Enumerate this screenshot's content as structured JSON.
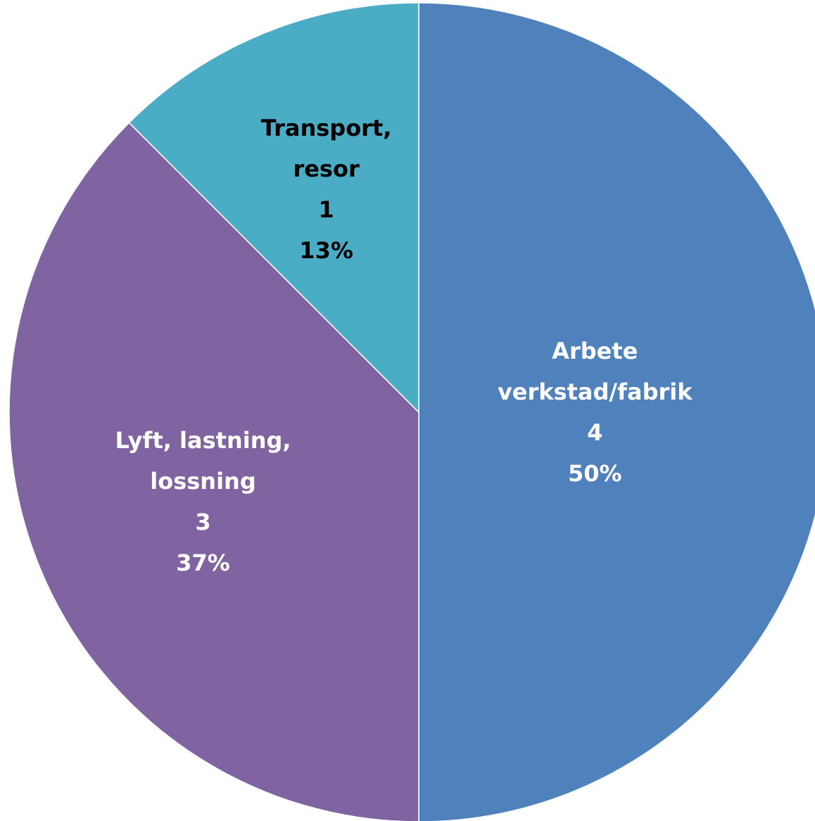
{
  "chart_data": {
    "type": "pie",
    "categories": [
      "Arbete verkstad/fabrik",
      "Lyft, lastning, lossning",
      "Transport, resor"
    ],
    "values": [
      4,
      3,
      1
    ],
    "percent_labels": [
      "50%",
      "37%",
      "13%"
    ],
    "colors": [
      "#4f81bd",
      "#8064a2",
      "#4bacc6"
    ],
    "label_colors": [
      "#ffffff",
      "#ffffff",
      "#000000"
    ]
  }
}
